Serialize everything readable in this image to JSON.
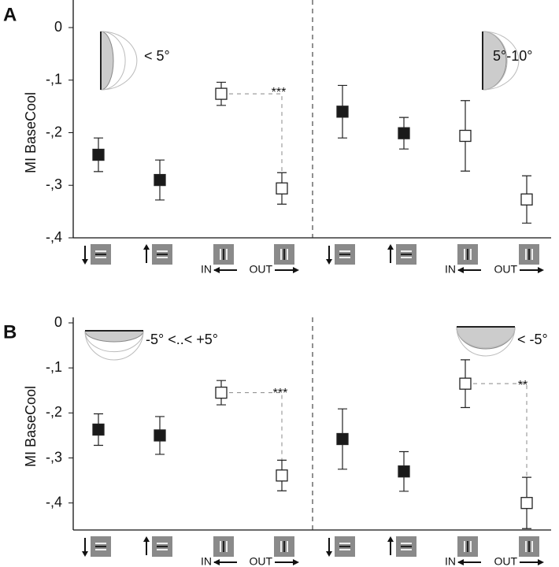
{
  "chart_data": [
    {
      "type": "point",
      "panel_label": "A",
      "ylabel": "MI BaseCool",
      "categories": [
        null,
        null,
        "IN",
        "OUT",
        null,
        null,
        "IN",
        "OUT"
      ],
      "values": [
        -0.242,
        -0.29,
        -0.126,
        -0.306,
        -0.16,
        -0.201,
        -0.206,
        -0.327
      ],
      "errors": [
        0.032,
        0.038,
        0.022,
        0.03,
        0.05,
        0.03,
        0.067,
        0.045
      ],
      "marker_fills": [
        "#1a1a1a",
        "#1a1a1a",
        "#ffffff",
        "#ffffff",
        "#1a1a1a",
        "#1a1a1a",
        "#ffffff",
        "#ffffff"
      ],
      "ylim": [
        0,
        -0.4
      ],
      "yticks": [
        0,
        {
          "value": -0.1,
          "label": "-,1"
        },
        {
          "value": -0.2,
          "label": "-,2"
        },
        {
          "value": -0.3,
          "label": "-,3"
        },
        {
          "value": -0.4,
          "label": "-,4"
        }
      ],
      "annotations": [
        "< 5°",
        "5°-10°",
        "***"
      ]
    },
    {
      "type": "point",
      "panel_label": "B",
      "ylabel": "MI BaseCool",
      "categories": [
        null,
        null,
        "IN",
        "OUT",
        null,
        null,
        "IN",
        "OUT"
      ],
      "values": [
        -0.237,
        -0.25,
        -0.155,
        -0.339,
        -0.258,
        -0.33,
        -0.135,
        -0.4
      ],
      "errors": [
        0.035,
        0.042,
        0.027,
        0.034,
        0.067,
        0.044,
        0.053,
        0.057
      ],
      "marker_fills": [
        "#1a1a1a",
        "#1a1a1a",
        "#ffffff",
        "#ffffff",
        "#1a1a1a",
        "#1a1a1a",
        "#ffffff",
        "#ffffff"
      ],
      "ylim": [
        0,
        -0.46
      ],
      "yticks": [
        0,
        {
          "value": -0.1,
          "label": "-,1"
        },
        {
          "value": -0.2,
          "label": "-,2"
        },
        {
          "value": -0.3,
          "label": "-,3"
        },
        {
          "value": -0.4,
          "label": "-,4"
        }
      ],
      "annotations": [
        "-5° <..< +5°",
        "< -5°",
        "***",
        "**"
      ]
    }
  ]
}
